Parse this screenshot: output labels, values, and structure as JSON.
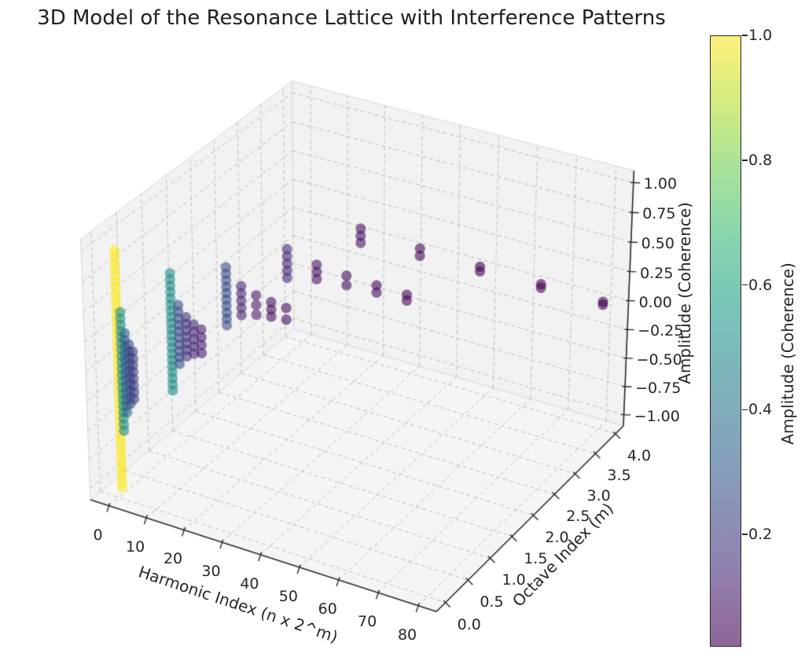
{
  "title": "3D Model of the Resonance Lattice with Interference Patterns",
  "chart_data": {
    "type": "scatter",
    "projection": "3d",
    "title": "3D Model of the Resonance Lattice with Interference Patterns",
    "xlabel": "Harmonic Index (n x 2^m)",
    "ylabel": "Octave Index (m)",
    "zlabel": "Amplitude (Coherence)",
    "grid": true,
    "legend": "none",
    "view": {
      "elev": 30,
      "azim": -60,
      "dist": 10,
      "box_aspect": [
        1,
        1,
        0.75
      ]
    },
    "xlim": [
      -5,
      84.5
    ],
    "ylim": [
      -0.2,
      4.2
    ],
    "zlim": [
      -1.1,
      1.1
    ],
    "x_ticks": {
      "values": [
        0,
        10,
        20,
        30,
        40,
        50,
        60,
        70,
        80
      ],
      "labels": [
        "0",
        "10",
        "20",
        "30",
        "40",
        "50",
        "60",
        "70",
        "80"
      ]
    },
    "y_ticks": {
      "values": [
        0,
        0.5,
        1,
        1.5,
        2,
        2.5,
        3,
        3.5,
        4
      ],
      "labels": [
        "0.0",
        "0.5",
        "1.0",
        "1.5",
        "2.0",
        "2.5",
        "3.0",
        "3.5",
        "4.0"
      ]
    },
    "z_ticks": {
      "values": [
        1,
        0.75,
        0.5,
        0.25,
        0,
        -0.25,
        -0.5,
        -0.75,
        -1
      ],
      "labels": [
        "1.00",
        "0.75",
        "0.50",
        "0.25",
        "0.00",
        "−0.25",
        "−0.50",
        "−0.75",
        "−1.00"
      ]
    },
    "colormap": "viridis",
    "alpha": 0.6,
    "vmin": 0.0125,
    "vmax": 1.0,
    "samples_full_column": 40,
    "z_rule": "each column spans z from -coherence to +coherence, centered at 0",
    "columns": [
      {
        "m": 0,
        "n": 1,
        "x": 1,
        "y": 0,
        "coherence": 1.0
      },
      {
        "m": 0,
        "n": 2,
        "x": 2,
        "y": 0,
        "coherence": 0.5
      },
      {
        "m": 0,
        "n": 3,
        "x": 3,
        "y": 0,
        "coherence": 0.3333
      },
      {
        "m": 0,
        "n": 4,
        "x": 4,
        "y": 0,
        "coherence": 0.25
      },
      {
        "m": 0,
        "n": 5,
        "x": 5,
        "y": 0,
        "coherence": 0.2
      },
      {
        "m": 1,
        "n": 1,
        "x": 2,
        "y": 1,
        "coherence": 0.5
      },
      {
        "m": 1,
        "n": 2,
        "x": 4,
        "y": 1,
        "coherence": 0.25
      },
      {
        "m": 1,
        "n": 3,
        "x": 6,
        "y": 1,
        "coherence": 0.1667
      },
      {
        "m": 1,
        "n": 4,
        "x": 8,
        "y": 1,
        "coherence": 0.125
      },
      {
        "m": 1,
        "n": 5,
        "x": 10,
        "y": 1,
        "coherence": 0.1
      },
      {
        "m": 2,
        "n": 1,
        "x": 4,
        "y": 2,
        "coherence": 0.25
      },
      {
        "m": 2,
        "n": 2,
        "x": 8,
        "y": 2,
        "coherence": 0.125
      },
      {
        "m": 2,
        "n": 3,
        "x": 12,
        "y": 2,
        "coherence": 0.0833
      },
      {
        "m": 2,
        "n": 4,
        "x": 16,
        "y": 2,
        "coherence": 0.0625
      },
      {
        "m": 2,
        "n": 5,
        "x": 20,
        "y": 2,
        "coherence": 0.05
      },
      {
        "m": 3,
        "n": 1,
        "x": 8,
        "y": 3,
        "coherence": 0.125
      },
      {
        "m": 3,
        "n": 2,
        "x": 16,
        "y": 3,
        "coherence": 0.0625
      },
      {
        "m": 3,
        "n": 3,
        "x": 24,
        "y": 3,
        "coherence": 0.0417
      },
      {
        "m": 3,
        "n": 4,
        "x": 32,
        "y": 3,
        "coherence": 0.0313
      },
      {
        "m": 3,
        "n": 5,
        "x": 40,
        "y": 3,
        "coherence": 0.025
      },
      {
        "m": 4,
        "n": 1,
        "x": 16,
        "y": 4,
        "coherence": 0.0625
      },
      {
        "m": 4,
        "n": 2,
        "x": 32,
        "y": 4,
        "coherence": 0.0313
      },
      {
        "m": 4,
        "n": 3,
        "x": 48,
        "y": 4,
        "coherence": 0.0208
      },
      {
        "m": 4,
        "n": 4,
        "x": 64,
        "y": 4,
        "coherence": 0.0156
      },
      {
        "m": 4,
        "n": 5,
        "x": 80,
        "y": 4,
        "coherence": 0.0125
      }
    ],
    "colorbar": {
      "label": "Amplitude (Coherence)",
      "ticks": {
        "values": [
          0.2,
          0.4,
          0.6,
          0.8,
          1.0
        ],
        "labels": [
          "0.2",
          "0.4",
          "0.6",
          "0.8",
          "1.0"
        ]
      }
    },
    "colors": {
      "background": "#ffffff",
      "text": "#262626",
      "axis_line": "#2b2b2b",
      "grid_line": "#bdbdbd",
      "pane_wall": "#f2f2f2",
      "pane_floor": "#f5f5f6",
      "pane_edge": "#d9d9dc",
      "viridis_stops": [
        "#440154",
        "#482878",
        "#3e4989",
        "#31688e",
        "#26828e",
        "#1f9e89",
        "#35b779",
        "#6dce58",
        "#b4de2c",
        "#fde725"
      ]
    }
  }
}
